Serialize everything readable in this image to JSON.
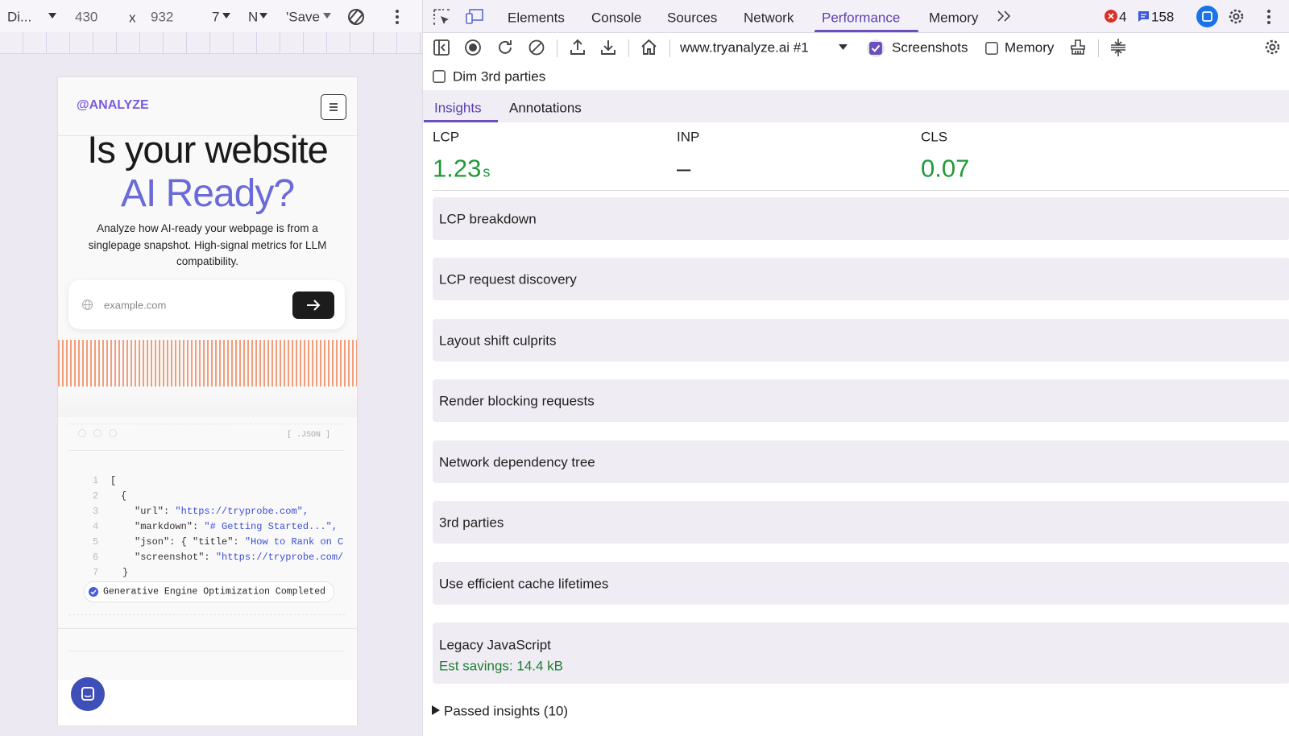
{
  "device_toolbar": {
    "device": "Di...",
    "width": "430",
    "times": "x",
    "height": "932",
    "zoom": "7",
    "throttle": "N",
    "save": "'Save"
  },
  "devtools_tabs": [
    "Elements",
    "Console",
    "Sources",
    "Network",
    "Performance",
    "Memory"
  ],
  "errors": "4",
  "messages": "158",
  "recording": "www.tryanalyze.ai #1",
  "screenshots_label": "Screenshots",
  "memory_label": "Memory",
  "dim_label": "Dim 3rd parties",
  "sidebar_tabs": [
    "Insights",
    "Annotations"
  ],
  "metrics": [
    {
      "label": "LCP",
      "value": "1.23",
      "unit": "s"
    },
    {
      "label": "INP",
      "value": "–"
    },
    {
      "label": "CLS",
      "value": "0.07"
    }
  ],
  "insights": [
    {
      "title": "LCP breakdown"
    },
    {
      "title": "LCP request discovery"
    },
    {
      "title": "Layout shift culprits"
    },
    {
      "title": "Render blocking requests"
    },
    {
      "title": "Network dependency tree"
    },
    {
      "title": "3rd parties"
    },
    {
      "title": "Use efficient cache lifetimes"
    },
    {
      "title": "Legacy JavaScript",
      "savings": "Est savings: 14.4 kB"
    }
  ],
  "passed": "Passed insights (10)",
  "site": {
    "logo": "@ANALYZE",
    "headline_1": "Is your website",
    "headline_2": "AI Ready?",
    "description": "Analyze how AI-ready your webpage is from a singlepage snapshot. High-signal metrics for LLM compatibility.",
    "placeholder": "example.com",
    "json_tag": "[ .JSON ]",
    "code_lines": [
      {
        "number": "1",
        "parts": [
          "["
        ]
      },
      {
        "number": "2",
        "parts": [
          "{"
        ]
      },
      {
        "number": "3",
        "parts": [
          "\"url\": ",
          "\"https://tryprobe.com\","
        ]
      },
      {
        "number": "4",
        "parts": [
          "\"markdown\": ",
          "\"# Getting Started...\","
        ]
      },
      {
        "number": "5",
        "parts": [
          "\"json\": { \"title\": ",
          "\"How to Rank on C"
        ]
      },
      {
        "number": "6",
        "parts": [
          "\"screenshot\": ",
          "\"https://tryprobe.com/"
        ]
      },
      {
        "number": "7",
        "parts": [
          "}"
        ]
      }
    ],
    "status": "Generative Engine Optimization Completed"
  }
}
